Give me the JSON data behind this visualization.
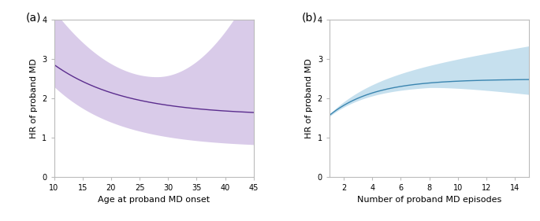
{
  "panel_a": {
    "label": "(a)",
    "xlabel": "Age at proband MD onset",
    "ylabel": "HR of proband MD",
    "xlim": [
      10,
      45
    ],
    "ylim": [
      0,
      4
    ],
    "xticks": [
      10,
      15,
      20,
      25,
      30,
      35,
      40,
      45
    ],
    "yticks": [
      0,
      1,
      2,
      3,
      4
    ],
    "line_color": "#5b2d8e",
    "fill_color": "#c9b5e0",
    "fill_alpha": 0.7,
    "x_start": 10,
    "x_end": 45
  },
  "panel_b": {
    "label": "(b)",
    "xlabel": "Number of proband MD episodes",
    "ylabel": "HR of proband MD",
    "xlim": [
      1,
      15
    ],
    "ylim": [
      0,
      4
    ],
    "xticks": [
      2,
      4,
      6,
      8,
      10,
      12,
      14
    ],
    "yticks": [
      0,
      1,
      2,
      3,
      4
    ],
    "line_color": "#3a85b0",
    "fill_color": "#a8d0e6",
    "fill_alpha": 0.65,
    "x_start": 1,
    "x_end": 15
  },
  "background_color": "#ffffff",
  "axis_background": "#ffffff",
  "spine_color": "#bbbbbb",
  "label_fontsize": 8,
  "tick_fontsize": 7,
  "panel_label_fontsize": 10
}
